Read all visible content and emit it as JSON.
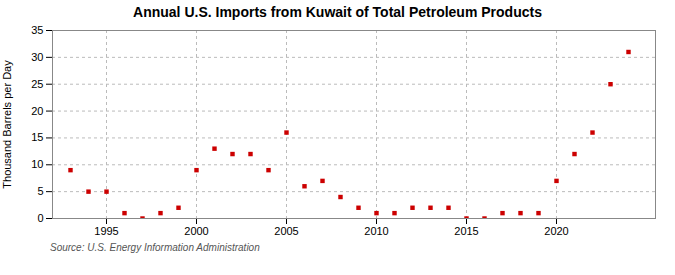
{
  "chart_data": {
    "type": "scatter",
    "title": "Annual U.S. Imports from Kuwait of Total Petroleum Products",
    "ylabel": "Thousand Barrels per Day",
    "source": "Source: U.S. Energy Information Administration",
    "x": [
      1993,
      1994,
      1995,
      1996,
      1997,
      1998,
      1999,
      2000,
      2001,
      2002,
      2003,
      2004,
      2005,
      2006,
      2007,
      2008,
      2009,
      2010,
      2011,
      2012,
      2013,
      2014,
      2015,
      2016,
      2017,
      2018,
      2019,
      2020,
      2021,
      2022,
      2023,
      2024
    ],
    "values": [
      9,
      5,
      5,
      1,
      0,
      1,
      2,
      9,
      13,
      12,
      12,
      9,
      16,
      6,
      7,
      4,
      2,
      1,
      1,
      2,
      2,
      2,
      0,
      0,
      1,
      1,
      1,
      7,
      12,
      16,
      25,
      31
    ],
    "color": "#cc0000",
    "marker": "square",
    "xlim": [
      1992.0,
      2025.5
    ],
    "ylim": [
      0,
      35
    ],
    "xticks": [
      1995,
      2000,
      2005,
      2010,
      2015,
      2020
    ],
    "yticks": [
      0,
      5,
      10,
      15,
      20,
      25,
      30,
      35
    ],
    "grid": true
  }
}
